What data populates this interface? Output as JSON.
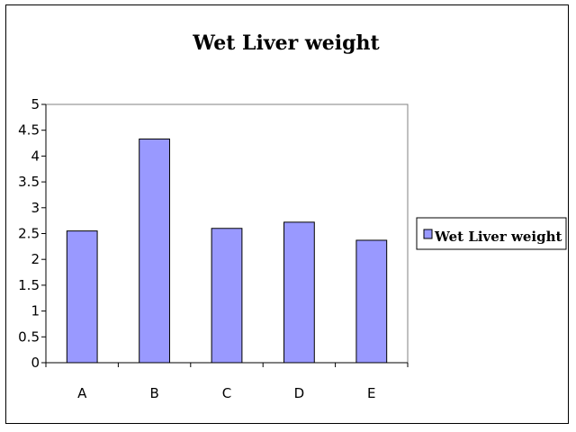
{
  "chart_data": {
    "type": "bar",
    "title": "Wet Liver weight",
    "categories": [
      "A",
      "B",
      "C",
      "D",
      "E"
    ],
    "series": [
      {
        "name": "Wet Liver weight",
        "values": [
          2.55,
          4.33,
          2.6,
          2.72,
          2.37
        ]
      }
    ],
    "ylim": [
      0,
      5
    ],
    "yticks": [
      "0",
      "0.5",
      "1",
      "1.5",
      "2",
      "2.5",
      "3",
      "3.5",
      "4",
      "4.5",
      "5"
    ],
    "xlabel": "",
    "ylabel": "",
    "grid": false,
    "legend_position": "right",
    "bar_color": "#9999ff",
    "plot_border_color": "#808080"
  }
}
